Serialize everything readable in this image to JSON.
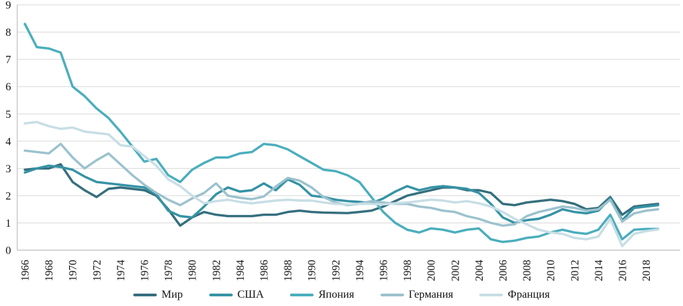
{
  "figure": {
    "type_note": "multi-series line chart, no title, legend at bottom",
    "background": "#ffffff",
    "grid_color": "#d9d9d9",
    "axis_color": "#bfbfbf",
    "text_color": "#111111"
  },
  "chart_data": {
    "type": "line",
    "x": [
      1966,
      1967,
      1968,
      1969,
      1970,
      1971,
      1972,
      1973,
      1974,
      1975,
      1976,
      1977,
      1978,
      1979,
      1980,
      1981,
      1982,
      1983,
      1984,
      1985,
      1986,
      1987,
      1988,
      1989,
      1990,
      1991,
      1992,
      1993,
      1994,
      1995,
      1996,
      1997,
      1998,
      1999,
      2000,
      2001,
      2002,
      2003,
      2004,
      2005,
      2006,
      2007,
      2008,
      2009,
      2010,
      2011,
      2012,
      2013,
      2014,
      2015,
      2016,
      2017,
      2018,
      2019
    ],
    "x_tick_labels": [
      "1966",
      "1968",
      "1970",
      "1972",
      "1974",
      "1976",
      "1978",
      "1980",
      "1982",
      "1984",
      "1986",
      "1988",
      "1990",
      "1992",
      "1994",
      "1996",
      "1998",
      "2000",
      "2002",
      "2004",
      "2006",
      "2008",
      "2010",
      "2012",
      "2014",
      "2016",
      "2018"
    ],
    "y_ticks": [
      0,
      1,
      2,
      3,
      4,
      5,
      6,
      7,
      8,
      9
    ],
    "ylim": [
      0,
      9
    ],
    "grid": true,
    "legend_position": "bottom",
    "series": [
      {
        "name": "Мир",
        "color": "#356F7D",
        "values": [
          2.95,
          3.0,
          3.0,
          3.15,
          2.5,
          2.2,
          1.95,
          2.25,
          2.3,
          2.25,
          2.2,
          2.0,
          1.5,
          0.9,
          1.2,
          1.4,
          1.3,
          1.25,
          1.25,
          1.25,
          1.3,
          1.3,
          1.4,
          1.45,
          1.4,
          1.38,
          1.37,
          1.36,
          1.4,
          1.45,
          1.6,
          1.8,
          2.0,
          2.1,
          2.2,
          2.3,
          2.3,
          2.2,
          2.2,
          2.1,
          1.7,
          1.65,
          1.75,
          1.8,
          1.85,
          1.8,
          1.7,
          1.5,
          1.55,
          1.95,
          1.3,
          1.6,
          1.65,
          1.7
        ]
      },
      {
        "name": "США",
        "color": "#3693A5",
        "values": [
          2.85,
          3.0,
          3.1,
          3.05,
          2.95,
          2.7,
          2.5,
          2.45,
          2.4,
          2.35,
          2.3,
          2.05,
          1.45,
          1.25,
          1.2,
          1.6,
          2.05,
          2.3,
          2.15,
          2.2,
          2.45,
          2.2,
          2.6,
          2.4,
          2.0,
          1.95,
          1.85,
          1.8,
          1.77,
          1.72,
          1.9,
          2.15,
          2.35,
          2.2,
          2.3,
          2.35,
          2.3,
          2.25,
          2.1,
          1.7,
          1.2,
          1.0,
          1.1,
          1.15,
          1.3,
          1.5,
          1.4,
          1.35,
          1.45,
          1.9,
          1.1,
          1.55,
          1.6,
          1.65
        ]
      },
      {
        "name": "Япония",
        "color": "#4BAEBD",
        "values": [
          8.3,
          7.45,
          7.4,
          7.25,
          6.0,
          5.65,
          5.2,
          4.85,
          4.35,
          3.8,
          3.25,
          3.35,
          2.75,
          2.5,
          2.95,
          3.2,
          3.4,
          3.4,
          3.55,
          3.6,
          3.9,
          3.85,
          3.7,
          3.45,
          3.2,
          2.95,
          2.9,
          2.75,
          2.5,
          1.95,
          1.4,
          1.0,
          0.75,
          0.65,
          0.8,
          0.75,
          0.65,
          0.75,
          0.8,
          0.4,
          0.3,
          0.35,
          0.45,
          0.5,
          0.65,
          0.75,
          0.65,
          0.6,
          0.75,
          1.3,
          0.4,
          0.75,
          0.78,
          0.78
        ]
      },
      {
        "name": "Германия",
        "color": "#9CC2CD",
        "values": [
          3.65,
          3.6,
          3.55,
          3.9,
          3.4,
          3.0,
          3.3,
          3.55,
          3.15,
          2.75,
          2.4,
          2.1,
          1.85,
          1.65,
          1.9,
          2.1,
          2.45,
          2.0,
          1.92,
          1.87,
          1.97,
          2.33,
          2.65,
          2.55,
          2.3,
          1.95,
          1.75,
          1.65,
          1.7,
          1.8,
          1.75,
          1.7,
          1.7,
          1.6,
          1.55,
          1.45,
          1.4,
          1.25,
          1.15,
          1.0,
          0.9,
          0.95,
          1.25,
          1.4,
          1.5,
          1.6,
          1.55,
          1.45,
          1.5,
          1.85,
          1.05,
          1.35,
          1.45,
          1.5
        ]
      },
      {
        "name": "Франция",
        "color": "#C7DEE5",
        "values": [
          4.65,
          4.7,
          4.55,
          4.45,
          4.5,
          4.35,
          4.3,
          4.25,
          3.85,
          3.8,
          3.45,
          3.1,
          2.6,
          2.35,
          2.0,
          1.72,
          1.8,
          1.85,
          1.77,
          1.72,
          1.77,
          1.82,
          1.85,
          1.82,
          1.82,
          1.75,
          1.7,
          1.68,
          1.7,
          1.7,
          1.68,
          1.72,
          1.75,
          1.8,
          1.85,
          1.82,
          1.75,
          1.8,
          1.72,
          1.6,
          1.4,
          1.15,
          0.95,
          0.75,
          0.65,
          0.6,
          0.45,
          0.4,
          0.5,
          1.15,
          0.15,
          0.6,
          0.7,
          0.76
        ]
      }
    ]
  }
}
